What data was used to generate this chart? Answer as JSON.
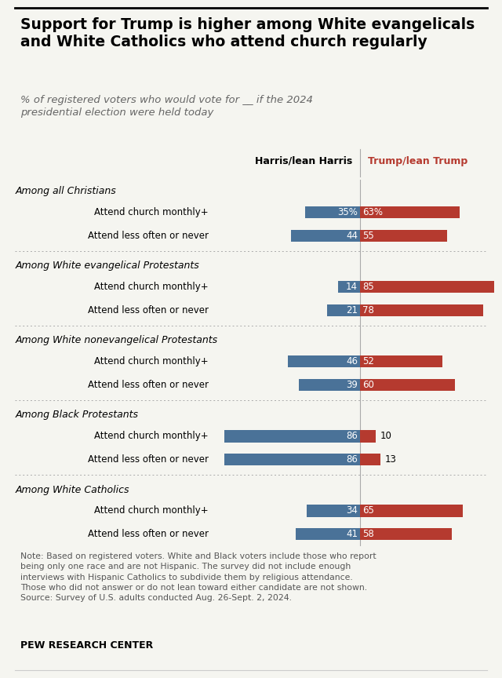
{
  "title": "Support for Trump is higher among White evangelicals\nand White Catholics who attend church regularly",
  "subtitle": "% of registered voters who would vote for __ if the 2024\npresidential election were held today",
  "col_header_harris": "Harris/lean Harris",
  "col_header_trump": "Trump/lean Trump",
  "groups": [
    {
      "group_label": "Among all Christians",
      "rows": [
        {
          "label": "Attend church monthly+",
          "harris": 35,
          "trump": 63,
          "show_pct": true
        },
        {
          "label": "Attend less often or never",
          "harris": 44,
          "trump": 55,
          "show_pct": false
        }
      ]
    },
    {
      "group_label": "Among White evangelical Protestants",
      "rows": [
        {
          "label": "Attend church monthly+",
          "harris": 14,
          "trump": 85,
          "show_pct": false
        },
        {
          "label": "Attend less often or never",
          "harris": 21,
          "trump": 78,
          "show_pct": false
        }
      ]
    },
    {
      "group_label": "Among White nonevangelical Protestants",
      "rows": [
        {
          "label": "Attend church monthly+",
          "harris": 46,
          "trump": 52,
          "show_pct": false
        },
        {
          "label": "Attend less often or never",
          "harris": 39,
          "trump": 60,
          "show_pct": false
        }
      ]
    },
    {
      "group_label": "Among Black Protestants",
      "rows": [
        {
          "label": "Attend church monthly+",
          "harris": 86,
          "trump": 10,
          "show_pct": false
        },
        {
          "label": "Attend less often or never",
          "harris": 86,
          "trump": 13,
          "show_pct": false
        }
      ]
    },
    {
      "group_label": "Among White Catholics",
      "rows": [
        {
          "label": "Attend church monthly+",
          "harris": 34,
          "trump": 65,
          "show_pct": false
        },
        {
          "label": "Attend less often or never",
          "harris": 41,
          "trump": 58,
          "show_pct": false
        }
      ]
    }
  ],
  "harris_color": "#4a7298",
  "trump_color": "#b53a2f",
  "max_val": 90,
  "note": "Note: Based on registered voters. White and Black voters include those who report\nbeing only one race and are not Hispanic. The survey did not include enough\ninterviews with Hispanic Catholics to subdivide them by religious attendance.\nThose who did not answer or do not lean toward either candidate are not shown.\nSource: Survey of U.S. adults conducted Aug. 26-Sept. 2, 2024.",
  "footer": "PEW RESEARCH CENTER",
  "bg_color": "#f5f5f0"
}
